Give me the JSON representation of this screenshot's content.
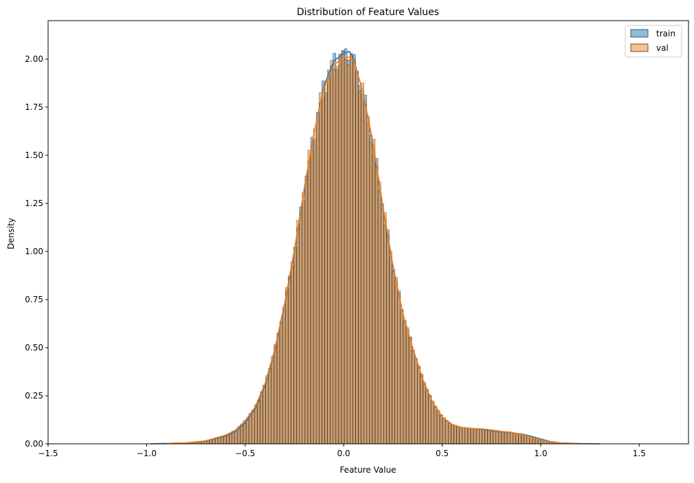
{
  "chart_data": {
    "type": "bar",
    "title": "Distribution of Feature Values",
    "xlabel": "Feature Value",
    "ylabel": "Density",
    "xlim": [
      -1.5,
      1.75
    ],
    "ylim": [
      0,
      2.2
    ],
    "xticks": [
      -1.5,
      -1.0,
      -0.5,
      0.0,
      0.5,
      1.0,
      1.5
    ],
    "xtick_labels": [
      "−1.5",
      "−1.0",
      "−0.5",
      "0.0",
      "0.5",
      "1.0",
      "1.5"
    ],
    "yticks": [
      0,
      0.25,
      0.5,
      0.75,
      1.0,
      1.25,
      1.5,
      1.75,
      2.0
    ],
    "ytick_labels": [
      "0.00",
      "0.25",
      "0.50",
      "0.75",
      "1.00",
      "1.25",
      "1.50",
      "1.75",
      "2.00"
    ],
    "grid": false,
    "legend_position": "top-right",
    "bin_range": [
      -0.98,
      1.3
    ],
    "bin_count": 160,
    "series": [
      {
        "name": "train",
        "fill": "#1f77b4",
        "line": "#1f77b4",
        "kde": [
          [
            -0.98,
            0.0
          ],
          [
            -0.8,
            0.005
          ],
          [
            -0.7,
            0.015
          ],
          [
            -0.6,
            0.04
          ],
          [
            -0.55,
            0.065
          ],
          [
            -0.5,
            0.11
          ],
          [
            -0.45,
            0.18
          ],
          [
            -0.4,
            0.3
          ],
          [
            -0.35,
            0.48
          ],
          [
            -0.3,
            0.72
          ],
          [
            -0.25,
            1.0
          ],
          [
            -0.2,
            1.32
          ],
          [
            -0.15,
            1.62
          ],
          [
            -0.1,
            1.86
          ],
          [
            -0.05,
            1.99
          ],
          [
            0.0,
            2.03
          ],
          [
            0.03,
            2.04
          ],
          [
            0.05,
            2.0
          ],
          [
            0.1,
            1.82
          ],
          [
            0.15,
            1.55
          ],
          [
            0.2,
            1.22
          ],
          [
            0.25,
            0.92
          ],
          [
            0.3,
            0.68
          ],
          [
            0.35,
            0.5
          ],
          [
            0.4,
            0.34
          ],
          [
            0.45,
            0.22
          ],
          [
            0.5,
            0.14
          ],
          [
            0.55,
            0.1
          ],
          [
            0.6,
            0.085
          ],
          [
            0.65,
            0.08
          ],
          [
            0.7,
            0.075
          ],
          [
            0.75,
            0.068
          ],
          [
            0.8,
            0.062
          ],
          [
            0.85,
            0.058
          ],
          [
            0.9,
            0.052
          ],
          [
            0.95,
            0.04
          ],
          [
            1.0,
            0.025
          ],
          [
            1.05,
            0.012
          ],
          [
            1.1,
            0.005
          ],
          [
            1.2,
            0.001
          ],
          [
            1.3,
            0.0
          ]
        ]
      },
      {
        "name": "val",
        "fill": "#ff7f0e",
        "line": "#ff7f0e",
        "kde": [
          [
            -0.9,
            0.002
          ],
          [
            -0.8,
            0.005
          ],
          [
            -0.7,
            0.016
          ],
          [
            -0.6,
            0.045
          ],
          [
            -0.55,
            0.07
          ],
          [
            -0.5,
            0.12
          ],
          [
            -0.45,
            0.19
          ],
          [
            -0.4,
            0.31
          ],
          [
            -0.35,
            0.49
          ],
          [
            -0.3,
            0.73
          ],
          [
            -0.25,
            1.01
          ],
          [
            -0.2,
            1.33
          ],
          [
            -0.15,
            1.62
          ],
          [
            -0.1,
            1.85
          ],
          [
            -0.05,
            1.97
          ],
          [
            0.0,
            2.01
          ],
          [
            0.03,
            2.01
          ],
          [
            0.05,
            1.99
          ],
          [
            0.1,
            1.82
          ],
          [
            0.15,
            1.56
          ],
          [
            0.2,
            1.23
          ],
          [
            0.25,
            0.93
          ],
          [
            0.3,
            0.68
          ],
          [
            0.35,
            0.5
          ],
          [
            0.4,
            0.34
          ],
          [
            0.45,
            0.22
          ],
          [
            0.5,
            0.14
          ],
          [
            0.55,
            0.1
          ],
          [
            0.6,
            0.085
          ],
          [
            0.65,
            0.08
          ],
          [
            0.7,
            0.078
          ],
          [
            0.75,
            0.072
          ],
          [
            0.8,
            0.065
          ],
          [
            0.85,
            0.06
          ],
          [
            0.9,
            0.05
          ],
          [
            0.95,
            0.035
          ],
          [
            1.0,
            0.02
          ],
          [
            1.05,
            0.01
          ],
          [
            1.1,
            0.004
          ],
          [
            1.2,
            0.0
          ]
        ]
      }
    ]
  }
}
